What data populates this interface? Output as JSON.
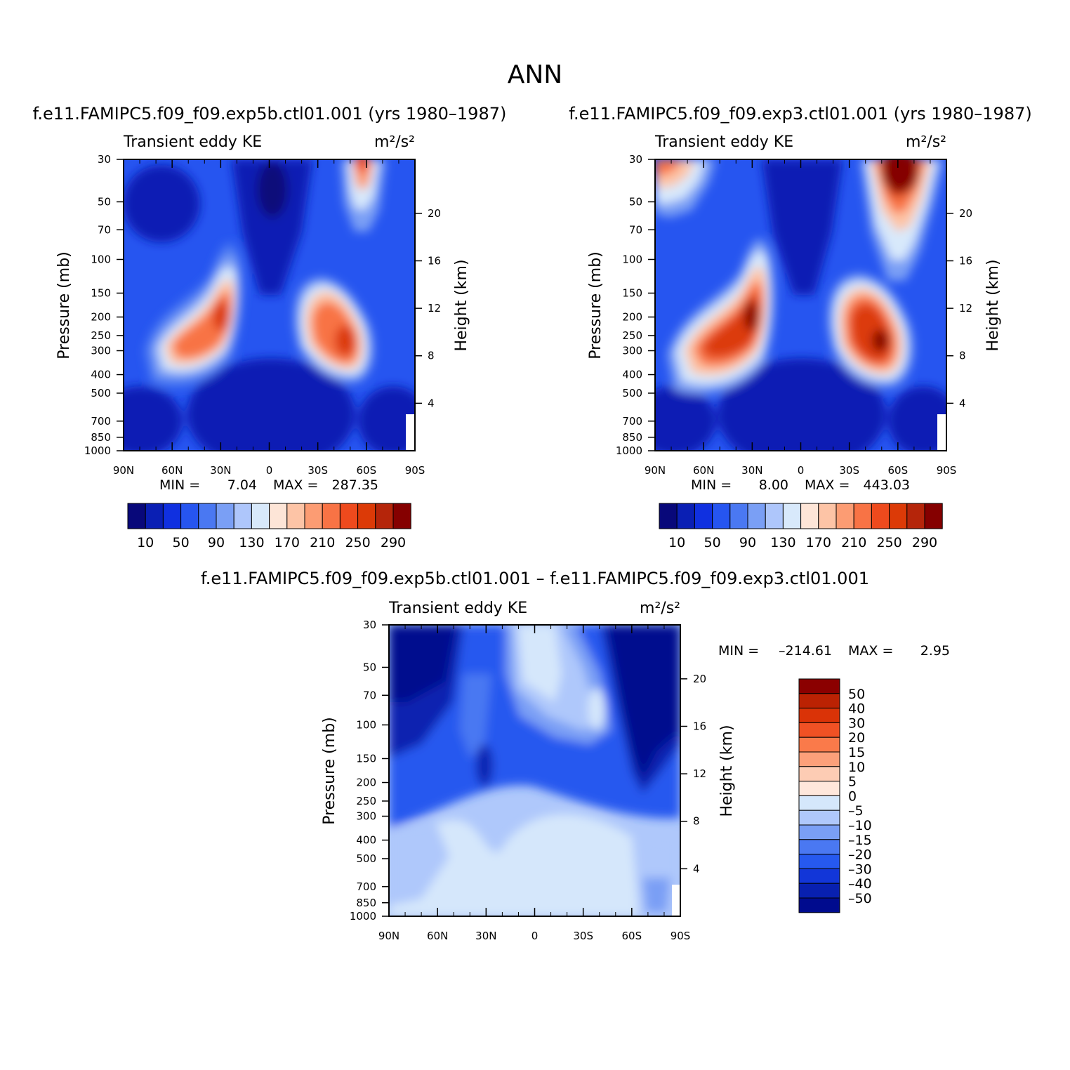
{
  "figure_title": "ANN",
  "colors": {
    "positive_palette": [
      "#08087a",
      "#0a1fb4",
      "#1030e0",
      "#2655f0",
      "#4a78f2",
      "#7a9ff5",
      "#aec6fb",
      "#d8e9fb",
      "#fde5d7",
      "#fdc4a6",
      "#fc9c73",
      "#f87345",
      "#ee4a1d",
      "#dc3a07",
      "#b5250a",
      "#850000"
    ],
    "diff_palette": [
      "#000b8e",
      "#0820b0",
      "#1236d8",
      "#2659ef",
      "#4a78f2",
      "#7a9ff5",
      "#afc8fb",
      "#d5e7fb",
      "#ffe7db",
      "#fdccb4",
      "#fca07a",
      "#fa7a4a",
      "#f05124",
      "#da3307",
      "#bb2203",
      "#8b0000"
    ]
  },
  "chart_data": [
    {
      "id": "panel1",
      "type": "heatmap",
      "title": "f.e11.FAMIPC5.f09_f09.exp5b.ctl01.001 (yrs 1980–1987)",
      "left_label": "Transient eddy KE",
      "right_label": "m²/s²",
      "xlabel": "",
      "ylabel": "Pressure (mb)",
      "y2label": "Height (km)",
      "x_ticks": [
        "90N",
        "60N",
        "30N",
        "0",
        "30S",
        "60S",
        "90S"
      ],
      "y_ticks": [
        30,
        50,
        70,
        100,
        150,
        200,
        250,
        300,
        400,
        500,
        700,
        850,
        1000
      ],
      "y2_ticks": [
        20,
        16,
        12,
        8,
        4
      ],
      "ylim": [
        1000,
        30
      ],
      "scale": "log",
      "min_label": "MIN =",
      "min_value": "7.04",
      "max_label": "MAX =",
      "max_value": "287.35",
      "colorbar_labels": [
        "10",
        "50",
        "90",
        "130",
        "170",
        "210",
        "250",
        "290"
      ],
      "features": [
        {
          "lat": 33,
          "p": 200,
          "value": 285
        },
        {
          "lat": -48,
          "p": 270,
          "value": 287
        },
        {
          "lat": -60,
          "p": 30,
          "value": 225
        },
        {
          "lat": 0,
          "p": 40,
          "value": 7.04
        }
      ]
    },
    {
      "id": "panel2",
      "type": "heatmap",
      "title": "f.e11.FAMIPC5.f09_f09.exp3.ctl01.001 (yrs 1980–1987)",
      "left_label": "Transient eddy KE",
      "right_label": "m²/s²",
      "xlabel": "",
      "ylabel": "Pressure (mb)",
      "y2label": "Height (km)",
      "x_ticks": [
        "90N",
        "60N",
        "30N",
        "0",
        "30S",
        "60S",
        "90S"
      ],
      "y_ticks": [
        30,
        50,
        70,
        100,
        150,
        200,
        250,
        300,
        400,
        500,
        700,
        850,
        1000
      ],
      "y2_ticks": [
        20,
        16,
        12,
        8,
        4
      ],
      "ylim": [
        1000,
        30
      ],
      "scale": "log",
      "min_label": "MIN =",
      "min_value": "8.00",
      "max_label": "MAX =",
      "max_value": "443.03",
      "colorbar_labels": [
        "10",
        "50",
        "90",
        "130",
        "170",
        "210",
        "250",
        "290"
      ],
      "features": [
        {
          "lat": 32,
          "p": 210,
          "value": 300
        },
        {
          "lat": -50,
          "p": 270,
          "value": 310
        },
        {
          "lat": -60,
          "p": 35,
          "value": 443
        },
        {
          "lat": 88,
          "p": 30,
          "value": 240
        }
      ]
    },
    {
      "id": "panel3",
      "type": "heatmap",
      "title": "f.e11.FAMIPC5.f09_f09.exp5b.ctl01.001 – f.e11.FAMIPC5.f09_f09.exp3.ctl01.001",
      "left_label": "Transient eddy KE",
      "right_label": "m²/s²",
      "xlabel": "",
      "ylabel": "Pressure (mb)",
      "y2label": "Height (km)",
      "x_ticks": [
        "90N",
        "60N",
        "30N",
        "0",
        "30S",
        "60S",
        "90S"
      ],
      "y_ticks": [
        30,
        50,
        70,
        100,
        150,
        200,
        250,
        300,
        400,
        500,
        700,
        850,
        1000
      ],
      "y2_ticks": [
        20,
        16,
        12,
        8,
        4
      ],
      "ylim": [
        1000,
        30
      ],
      "scale": "log",
      "min_label": "MIN =",
      "min_value": "–214.61",
      "max_label": "MAX =",
      "max_value": "2.95",
      "colorbar_labels": [
        "50",
        "40",
        "30",
        "20",
        "15",
        "10",
        "5",
        "0",
        "–5",
        "–10",
        "–15",
        "–20",
        "–30",
        "–40",
        "–50"
      ],
      "features": [
        {
          "lat": 75,
          "p": 40,
          "value": -60
        },
        {
          "lat": -70,
          "p": 40,
          "value": -214.61
        },
        {
          "lat": 5,
          "p": 60,
          "value": -2
        },
        {
          "lat": 0,
          "p": 600,
          "value": -3
        }
      ]
    }
  ]
}
